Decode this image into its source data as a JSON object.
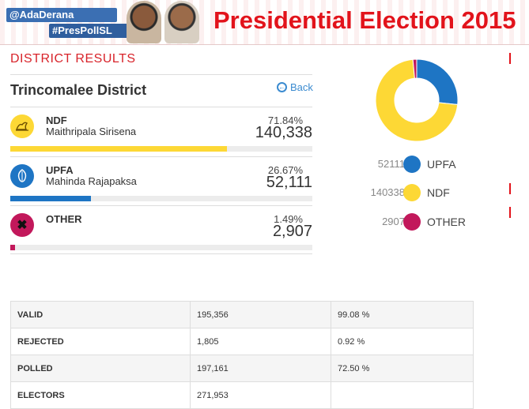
{
  "banner": {
    "handle": "@AdaDerana",
    "hashtag": "#PresPollSL",
    "title": "Presidential Election 2015"
  },
  "section_title": "DISTRICT RESULTS",
  "district": "Trincomalee District",
  "back_label": "Back",
  "candidates": [
    {
      "party": "NDF",
      "name": "Maithripala Sirisena",
      "percent": "71.84%",
      "votes": "140,338",
      "share": 0.7184,
      "color": "#fdd835",
      "icon": "swan-icon"
    },
    {
      "party": "UPFA",
      "name": "Mahinda Rajapaksa",
      "percent": "26.67%",
      "votes": "52,111",
      "share": 0.2667,
      "color": "#1e75c4",
      "icon": "betel-leaf-icon"
    },
    {
      "party": "OTHER",
      "name": "",
      "percent": "1.49%",
      "votes": "2,907",
      "share": 0.0149,
      "color": "#c2185b",
      "icon": "cross-icon"
    }
  ],
  "chart_data": {
    "type": "pie",
    "categories": [
      "UPFA",
      "NDF",
      "OTHER"
    ],
    "values": [
      52111,
      140338,
      2907
    ],
    "colors": [
      "#1e75c4",
      "#fdd835",
      "#c2185b"
    ],
    "legend": [
      {
        "value": "52111",
        "label": "UPFA"
      },
      {
        "value": "140338",
        "label": "NDF"
      },
      {
        "value": "2907",
        "label": "OTHER"
      }
    ]
  },
  "stats": [
    {
      "label": "VALID",
      "value": "195,356",
      "percent": "99.08 %"
    },
    {
      "label": "REJECTED",
      "value": "1,805",
      "percent": "0.92 %"
    },
    {
      "label": "POLLED",
      "value": "197,161",
      "percent": "72.50 %"
    },
    {
      "label": "ELECTORS",
      "value": "271,953",
      "percent": ""
    }
  ]
}
